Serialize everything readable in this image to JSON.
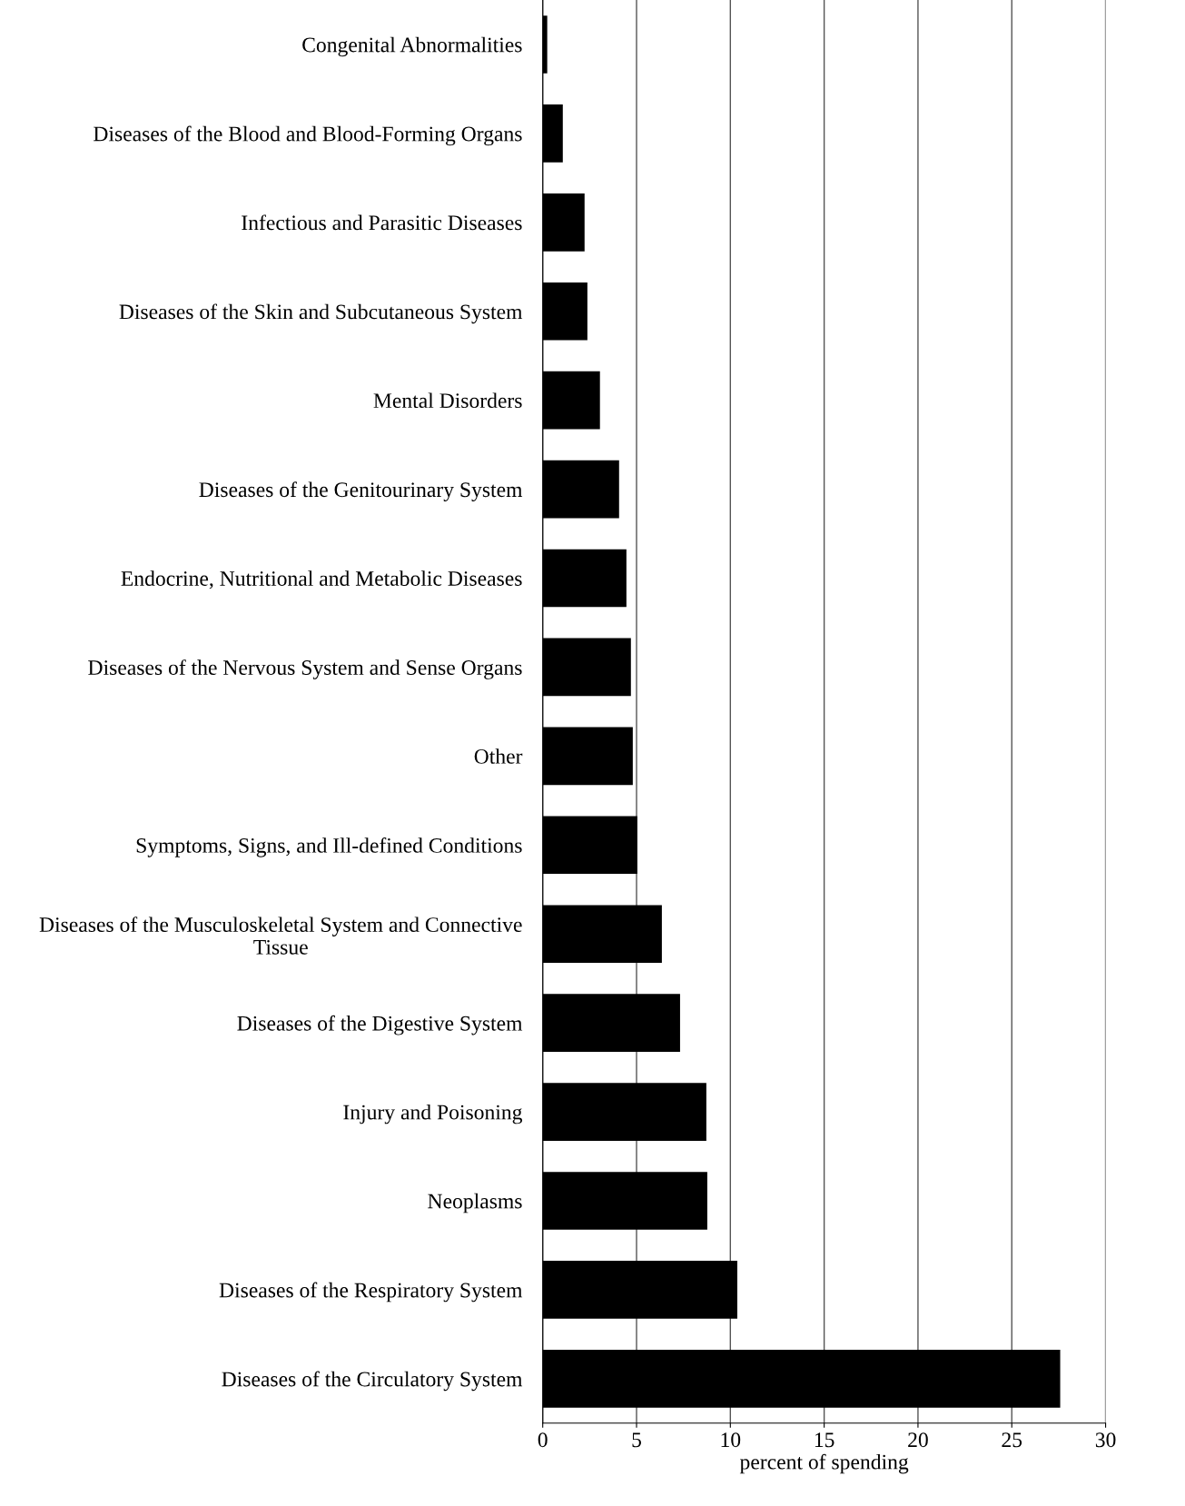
{
  "chart_data": {
    "type": "bar",
    "orientation": "horizontal",
    "xlabel": "percent of spending",
    "categories": [
      "Congenital Abnormalities",
      "Diseases of the Blood and Blood-Forming Organs",
      "Infectious and Parasitic Diseases",
      "Diseases of the Skin and Subcutaneous System",
      "Mental Disorders",
      "Diseases of the Genitourinary System",
      "Endocrine, Nutritional and Metabolic Diseases",
      "Diseases of the Nervous System and Sense Organs",
      "Other",
      "Symptoms, Signs, and Ill-defined Conditions",
      "Diseases of the Musculoskeletal System and Connective\nTissue",
      "Diseases of the Digestive System",
      "Injury and Poisoning",
      "Neoplasms",
      "Diseases of the Respiratory System",
      "Diseases of the Circulatory System"
    ],
    "values": [
      0.24,
      1.07,
      2.23,
      2.38,
      3.05,
      4.07,
      4.46,
      4.7,
      4.8,
      5.04,
      6.35,
      7.32,
      8.72,
      8.77,
      10.37,
      27.58
    ],
    "color": "#000000",
    "xlim": [
      0,
      30
    ],
    "xticks": [
      0,
      5,
      10,
      15,
      20,
      25,
      30
    ],
    "grid": "x",
    "legend": false
  }
}
